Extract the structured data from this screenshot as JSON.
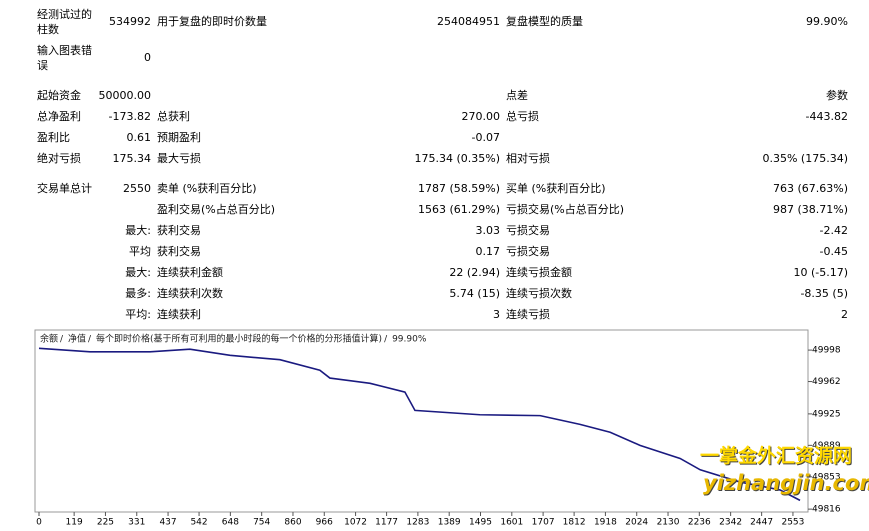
{
  "report": {
    "rows": [
      [
        "经测试过的柱数",
        "534992",
        "用于复盘的即时价数量",
        "254084951",
        "复盘模型的质量",
        "99.90%"
      ],
      [
        "输入图表错误",
        "0",
        null,
        null,
        null,
        null
      ],
      [
        "起始资金",
        "50000.00",
        null,
        null,
        "点差",
        "参数"
      ],
      [
        "总净盈利",
        "-173.82",
        "总获利",
        "270.00",
        "总亏损",
        "-443.82"
      ],
      [
        "盈利比",
        "0.61",
        "预期盈利",
        "-0.07",
        null,
        null
      ],
      [
        "绝对亏损",
        "175.34",
        "最大亏损",
        "175.34 (0.35%)",
        "相对亏损",
        "0.35% (175.34)"
      ],
      [
        "交易单总计",
        "2550",
        "卖单 (%获利百分比)",
        "1787 (58.59%)",
        "买单 (%获利百分比)",
        "763 (67.63%)"
      ],
      [
        null,
        null,
        "盈利交易(%占总百分比)",
        "1563 (61.29%)",
        "亏损交易(%占总百分比)",
        "987 (38.71%)"
      ],
      [
        null,
        "最大:",
        "获利交易",
        "3.03",
        "亏损交易",
        "-2.42"
      ],
      [
        null,
        "平均",
        "获利交易",
        "0.17",
        "亏损交易",
        "-0.45"
      ],
      [
        null,
        "最大:",
        "连续获利金额",
        "22 (2.94)",
        "连续亏损金额",
        "10 (-5.17)"
      ],
      [
        null,
        "最多:",
        "连续获利次数",
        "5.74 (15)",
        "连续亏损次数",
        "-8.35 (5)"
      ],
      [
        null,
        "平均:",
        "连续获利",
        "3",
        "连续亏损",
        "2"
      ]
    ]
  },
  "chart": {
    "type": "line",
    "header": [
      "余额",
      "净值",
      "每个即时价格(基于所有可利用的最小时段的每一个价格的分形插值计算)",
      "99.90%"
    ],
    "x": [
      0,
      173,
      376,
      511,
      647,
      816,
      951,
      985,
      1121,
      1239,
      1273,
      1493,
      1697,
      1832,
      1934,
      2035,
      2171,
      2239,
      2374,
      2509,
      2577
    ],
    "series": [
      {
        "name": "余额",
        "color": "#1a1a80",
        "values": [
          50000,
          49996,
          49996,
          49999,
          49992,
          49987,
          49975,
          49966,
          49960,
          49950,
          49929,
          49924,
          49923,
          49913,
          49904,
          49889,
          49874,
          49861,
          49847,
          49838,
          49826
        ]
      }
    ],
    "xlim": [
      0,
      2604
    ],
    "ylim": [
      49815,
      50021
    ],
    "xticks": [
      0,
      119,
      225,
      331,
      437,
      542,
      648,
      754,
      860,
      966,
      1072,
      1177,
      1283,
      1389,
      1495,
      1601,
      1707,
      1812,
      1918,
      2024,
      2130,
      2236,
      2342,
      2447,
      2553
    ],
    "yticks": [
      49998,
      49962,
      49925,
      49889,
      49853,
      49816
    ]
  },
  "watermark": {
    "title": "一掌金外汇资源网",
    "url": "yizhangjin.com"
  }
}
